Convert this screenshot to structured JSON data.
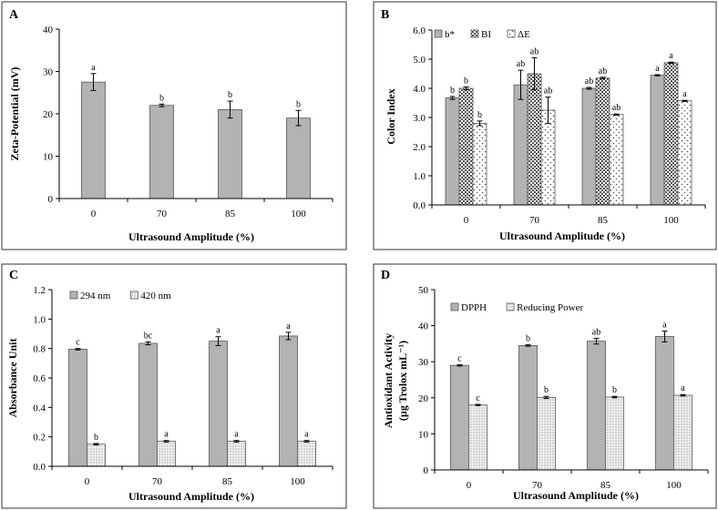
{
  "patterns": {
    "solid": "#b3b3b3",
    "checker": "#9e9e9e",
    "dots": "#ffffff",
    "dense": "#d0d0d0"
  },
  "chart_data": [
    {
      "type": "bar",
      "panel_label": "A",
      "title": "",
      "xlabel": "Ultrasound  Amplitude  (%)",
      "ylabel": "Zeta-Potential (mV)",
      "categories": [
        "0",
        "70",
        "85",
        "100"
      ],
      "ylim": [
        0,
        40
      ],
      "yticks": [
        "0",
        "10",
        "20",
        "30",
        "40"
      ],
      "legend": "none",
      "series": [
        {
          "name": "Zeta-Potential",
          "pattern": "solid",
          "values": [
            27.5,
            22.0,
            21.0,
            19.0
          ],
          "errors": [
            2.0,
            0.3,
            2.0,
            1.8
          ],
          "letters": [
            "a",
            "b",
            "b",
            "b"
          ]
        }
      ]
    },
    {
      "type": "bar",
      "panel_label": "B",
      "title": "",
      "xlabel": "Ultrasound  Amplitude  (%)",
      "ylabel": "Color Index",
      "categories": [
        "0",
        "70",
        "85",
        "100"
      ],
      "ylim": [
        0,
        6
      ],
      "yticks": [
        "0.0",
        "1.0",
        "2.0",
        "3.0",
        "4.0",
        "5.0",
        "6.0"
      ],
      "legend": "top-left",
      "series": [
        {
          "name": "b*",
          "pattern": "solid",
          "values": [
            3.67,
            4.12,
            4.0,
            4.45
          ],
          "errors": [
            0.05,
            0.5,
            0.03,
            0.02
          ],
          "letters": [
            "b",
            "ab",
            "ab",
            "a"
          ]
        },
        {
          "name": "BI",
          "pattern": "checker",
          "values": [
            4.0,
            4.5,
            4.35,
            4.88
          ],
          "errors": [
            0.05,
            0.55,
            0.03,
            0.02
          ],
          "letters": [
            "b",
            "ab",
            "ab",
            "a"
          ]
        },
        {
          "name": "ΔE",
          "pattern": "dots",
          "values": [
            2.8,
            3.25,
            3.1,
            3.57
          ],
          "errors": [
            0.08,
            0.45,
            0.02,
            0.02
          ],
          "letters": [
            "b",
            "ab",
            "ab",
            "a"
          ]
        }
      ]
    },
    {
      "type": "bar",
      "panel_label": "C",
      "title": "",
      "xlabel": "Ultrasound  Amplitude  (%)",
      "ylabel": "Absorbance Unit",
      "categories": [
        "0",
        "70",
        "85",
        "100"
      ],
      "ylim": [
        0,
        1.2
      ],
      "yticks": [
        "0.0",
        "0.2",
        "0.4",
        "0.6",
        "0.8",
        "1.0",
        "1.2"
      ],
      "legend": "top-left",
      "series": [
        {
          "name": "294 nm",
          "pattern": "solid",
          "values": [
            0.795,
            0.835,
            0.85,
            0.885
          ],
          "errors": [
            0.005,
            0.01,
            0.03,
            0.025
          ],
          "letters": [
            "c",
            "bc",
            "a",
            "a"
          ]
        },
        {
          "name": "420 nm",
          "pattern": "dense",
          "values": [
            0.15,
            0.17,
            0.17,
            0.17
          ],
          "errors": [
            0.005,
            0.005,
            0.005,
            0.005
          ],
          "letters": [
            "b",
            "a",
            "a",
            "a"
          ]
        }
      ]
    },
    {
      "type": "bar",
      "panel_label": "D",
      "title": "",
      "xlabel": "Ultrasound  Amplitude  (%)",
      "ylabel": "Antioxidant  Activity",
      "ylabel2": "(µg Trolox mL⁻¹)",
      "categories": [
        "0",
        "70",
        "85",
        "100"
      ],
      "ylim": [
        0,
        50
      ],
      "yticks": [
        "0",
        "10",
        "20",
        "30",
        "40",
        "50"
      ],
      "legend": "top-left",
      "series": [
        {
          "name": "DPPH",
          "pattern": "solid",
          "values": [
            29.0,
            34.5,
            35.7,
            37.0
          ],
          "errors": [
            0.2,
            0.2,
            0.8,
            1.5
          ],
          "letters": [
            "c",
            "b",
            "ab",
            "a"
          ]
        },
        {
          "name": "Reducing Power",
          "pattern": "dense",
          "values": [
            18.0,
            20.1,
            20.2,
            20.7
          ],
          "errors": [
            0.2,
            0.3,
            0.2,
            0.2
          ],
          "letters": [
            "c",
            "b",
            "b",
            "a"
          ]
        }
      ]
    }
  ]
}
